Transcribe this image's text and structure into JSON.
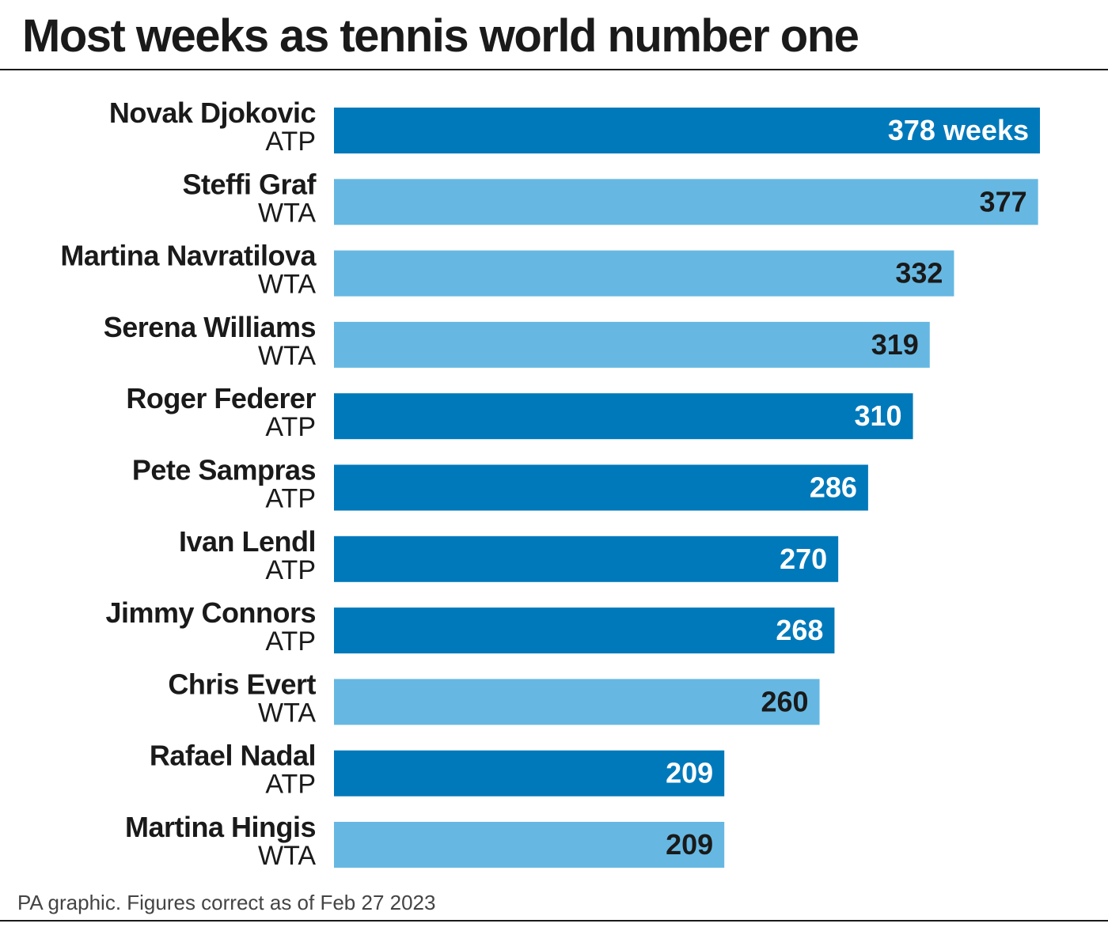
{
  "title": "Most weeks as tennis world number one",
  "footer": "PA graphic. Figures correct as of Feb 27 2023",
  "colors": {
    "ATP": "#0079bb",
    "WTA": "#66b8e2",
    "label_on_ATP": "#ffffff",
    "label_on_WTA": "#1a1a1a"
  },
  "chart_data": {
    "type": "bar",
    "orientation": "horizontal",
    "title": "Most weeks as tennis world number one",
    "categories": [
      "Novak Djokovic",
      "Steffi Graf",
      "Martina Navratilova",
      "Serena Williams",
      "Roger Federer",
      "Pete Sampras",
      "Ivan Lendl",
      "Jimmy Connors",
      "Chris Evert",
      "Rafael Nadal",
      "Martina Hingis"
    ],
    "tours": [
      "ATP",
      "WTA",
      "WTA",
      "WTA",
      "ATP",
      "ATP",
      "ATP",
      "ATP",
      "WTA",
      "ATP",
      "WTA"
    ],
    "values": [
      378,
      377,
      332,
      319,
      310,
      286,
      270,
      268,
      260,
      209,
      209
    ],
    "value_labels": [
      "378 weeks",
      "377",
      "332",
      "319",
      "310",
      "286",
      "270",
      "268",
      "260",
      "209",
      "209"
    ],
    "xlim": [
      0,
      378
    ],
    "grid": false,
    "legend": "none"
  }
}
